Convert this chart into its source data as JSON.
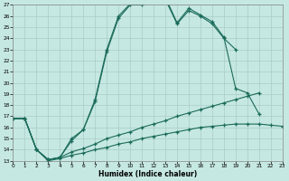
{
  "xlabel": "Humidex (Indice chaleur)",
  "bg_color": "#c6e8e2",
  "line_color": "#1a6b5a",
  "grid_color": "#a8ccc6",
  "xlim": [
    0,
    23
  ],
  "ylim": [
    13,
    27
  ],
  "xticks": [
    0,
    1,
    2,
    3,
    4,
    5,
    6,
    7,
    8,
    9,
    10,
    11,
    12,
    13,
    14,
    15,
    16,
    17,
    18,
    19,
    20,
    21,
    22,
    23
  ],
  "yticks": [
    13,
    14,
    15,
    16,
    17,
    18,
    19,
    20,
    21,
    22,
    23,
    24,
    25,
    26,
    27
  ],
  "curves": [
    {
      "x": [
        0,
        1,
        2,
        3,
        4,
        5,
        6,
        7,
        8,
        9,
        10,
        11,
        12,
        13,
        14,
        15,
        16,
        17,
        18,
        19
      ],
      "y": [
        16.8,
        16.8,
        14.0,
        13.1,
        13.3,
        15.0,
        15.8,
        18.3,
        22.8,
        25.8,
        27.0,
        27.0,
        27.3,
        27.5,
        25.3,
        26.5,
        26.0,
        25.3,
        24.0,
        23.0
      ]
    },
    {
      "x": [
        0,
        1,
        2,
        3,
        4,
        5,
        6,
        7,
        8,
        9,
        10,
        11,
        12,
        13,
        14,
        15,
        16,
        17,
        18,
        19,
        20,
        21
      ],
      "y": [
        16.8,
        16.8,
        14.0,
        13.1,
        13.3,
        14.8,
        15.8,
        18.5,
        23.0,
        26.0,
        27.1,
        27.2,
        27.4,
        27.7,
        25.4,
        26.7,
        26.1,
        25.5,
        24.1,
        19.5,
        19.1,
        17.2
      ]
    },
    {
      "x": [
        0,
        1,
        2,
        3,
        4,
        5,
        6,
        7,
        8,
        9,
        10,
        11,
        12,
        13,
        14,
        15,
        16,
        17,
        18,
        19,
        20,
        21,
        22,
        23
      ],
      "y": [
        16.8,
        16.8,
        14.0,
        13.1,
        13.3,
        13.8,
        14.1,
        14.5,
        15.0,
        15.3,
        15.6,
        16.0,
        16.3,
        16.6,
        17.0,
        17.3,
        17.6,
        17.9,
        18.2,
        18.5,
        18.8,
        19.1,
        null,
        null
      ]
    },
    {
      "x": [
        0,
        1,
        2,
        3,
        4,
        5,
        6,
        7,
        8,
        9,
        10,
        11,
        12,
        13,
        14,
        15,
        16,
        17,
        18,
        19,
        20,
        21,
        22,
        23
      ],
      "y": [
        16.8,
        16.8,
        14.0,
        13.0,
        13.2,
        13.5,
        13.7,
        14.0,
        14.2,
        14.5,
        14.7,
        15.0,
        15.2,
        15.4,
        15.6,
        15.8,
        16.0,
        16.1,
        16.2,
        16.3,
        16.3,
        16.3,
        16.2,
        16.1
      ]
    }
  ]
}
